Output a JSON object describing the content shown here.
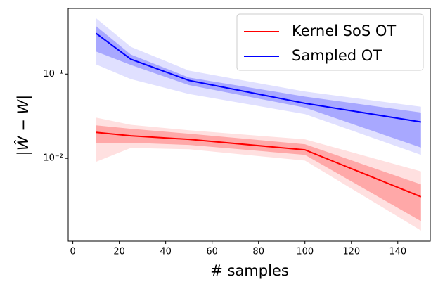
{
  "chart_data": {
    "type": "line",
    "log_y": true,
    "x_label": "# samples",
    "y_label": "|Ŵ − W|",
    "x": [
      10,
      25,
      50,
      100,
      150
    ],
    "series": [
      {
        "name": "Kernel SoS OT",
        "color": "#ff0000",
        "values": [
          0.0203,
          0.0185,
          0.0168,
          0.0126,
          0.0035
        ],
        "band_inner": {
          "upper": [
            0.0246,
            0.0224,
            0.0196,
            0.0147,
            0.0049
          ],
          "lower": [
            0.0153,
            0.0153,
            0.0144,
            0.011,
            0.0018
          ]
        },
        "band_outer": {
          "upper": [
            0.0304,
            0.025,
            0.0215,
            0.0168,
            0.007
          ],
          "lower": [
            0.0091,
            0.0133,
            0.0128,
            0.0094,
            0.00139
          ]
        }
      },
      {
        "name": "Sampled OT",
        "color": "#0000ff",
        "values": [
          0.304,
          0.15,
          0.084,
          0.045,
          0.027
        ],
        "band_inner": {
          "upper": [
            0.37,
            0.17,
            0.091,
            0.054,
            0.035
          ],
          "lower": [
            0.185,
            0.128,
            0.074,
            0.04,
            0.0134
          ]
        },
        "band_outer": {
          "upper": [
            0.46,
            0.21,
            0.11,
            0.062,
            0.041
          ],
          "lower": [
            0.13,
            0.087,
            0.058,
            0.0335,
            0.011
          ]
        }
      }
    ],
    "xlim": [
      -2,
      154
    ],
    "xticks": [
      0,
      20,
      40,
      60,
      80,
      100,
      120,
      140
    ],
    "ylim": [
      0.00104,
      0.6
    ],
    "yticks": [
      {
        "value": 0.01,
        "label": "10⁻²"
      },
      {
        "value": 0.1,
        "label": "10⁻¹"
      }
    ],
    "legend": "upper right"
  }
}
